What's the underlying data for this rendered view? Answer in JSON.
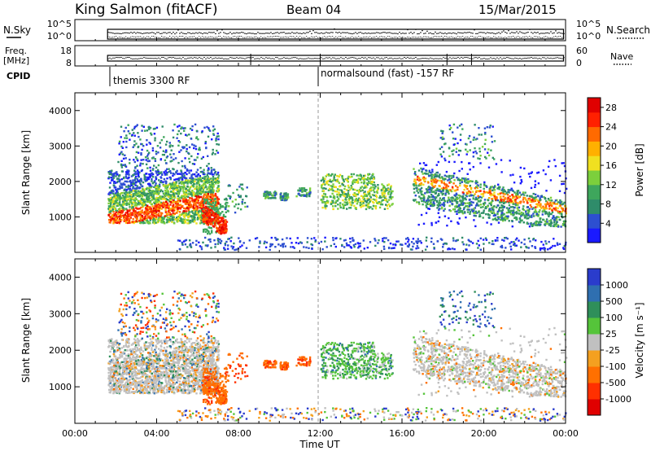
{
  "header": {
    "station": "King Salmon (fitACF)",
    "beam": "Beam 04",
    "date": "15/Mar/2015"
  },
  "noise_panel": {
    "left_label": "N.Sky",
    "right_label": "N.Search",
    "ticks_left": [
      "10^5",
      "10^0"
    ],
    "ticks_right": [
      "10^5",
      "10^0"
    ]
  },
  "freq_panel": {
    "left_label_line1": "Freq.",
    "left_label_line2": "[MHz]",
    "right_label": "Nave",
    "ticks_left": [
      "18",
      "8"
    ],
    "ticks_right": [
      "60",
      "0"
    ]
  },
  "cpid": {
    "label": "CPID",
    "segments": [
      {
        "start_hour": 1.6,
        "text": "themis 3300 RF"
      },
      {
        "start_hour": 11.95,
        "text": "normalsound (fast) -157 RF"
      }
    ]
  },
  "chart_data": [
    {
      "type": "heatmap",
      "panel": "power",
      "ylabel": "Slant Range [km]",
      "xlabel": "Time UT",
      "xlim_hours": [
        0,
        24
      ],
      "ylim": [
        0,
        4500
      ],
      "y_ticks": [
        1000,
        2000,
        3000,
        4000
      ],
      "x_tick_labels": [
        "00:00",
        "04:00",
        "08:00",
        "12:00",
        "16:00",
        "20:00",
        "00:00"
      ],
      "colorbar": {
        "label": "Power [dB]",
        "range": [
          0,
          30
        ],
        "tick_values": [
          4,
          8,
          12,
          16,
          20,
          24,
          28
        ],
        "colors": [
          "#1a1aff",
          "#2d4fd0",
          "#2f8c6a",
          "#3ea65c",
          "#7ccf3c",
          "#f0e020",
          "#ffb000",
          "#ff6a00",
          "#ff2000",
          "#e00000"
        ]
      },
      "echo_regions": [
        {
          "t": [
            1.6,
            7.0
          ],
          "r": [
            800,
            2400
          ],
          "level": "mixed_high_low_range"
        },
        {
          "t": [
            6.2,
            7.2
          ],
          "r": [
            500,
            1400
          ],
          "level": "high"
        },
        {
          "t": [
            9.0,
            11.5
          ],
          "r": [
            1400,
            2000
          ],
          "level": "low"
        },
        {
          "t": [
            12.0,
            15.5
          ],
          "r": [
            1200,
            2200
          ],
          "level": "medium"
        },
        {
          "t": [
            16.5,
            24.0
          ],
          "r": [
            800,
            2500
          ],
          "level": "medium_band"
        }
      ]
    },
    {
      "type": "heatmap",
      "panel": "velocity",
      "ylabel": "Slant Range [km]",
      "xlabel": "Time UT",
      "xlim_hours": [
        0,
        24
      ],
      "ylim": [
        0,
        4500
      ],
      "y_ticks": [
        1000,
        2000,
        3000,
        4000
      ],
      "x_tick_labels": [
        "00:00",
        "04:00",
        "08:00",
        "12:00",
        "16:00",
        "20:00",
        "00:00"
      ],
      "colorbar": {
        "label": "Velocity [m s⁻¹]",
        "tick_labels": [
          "1000",
          "500",
          "100",
          "25",
          "-25",
          "-100",
          "-500",
          "-1000"
        ],
        "colors": [
          "#2a3ccc",
          "#2f6fb0",
          "#2f8f5a",
          "#55c43a",
          "#c0c0c0",
          "#f4a020",
          "#ff7000",
          "#ff3000",
          "#e00000"
        ]
      }
    }
  ]
}
